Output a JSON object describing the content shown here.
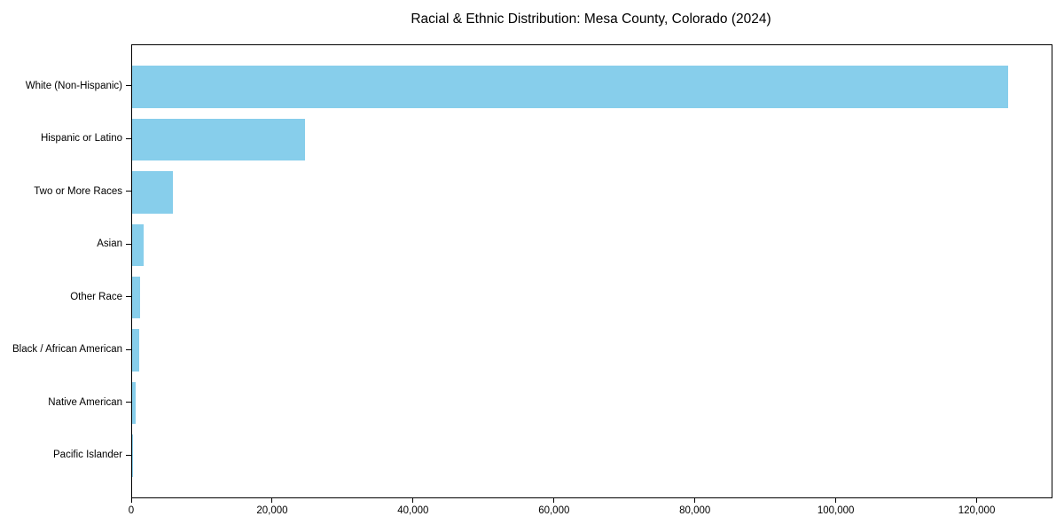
{
  "title": "Racial & Ethnic Distribution: Mesa County, Colorado (2024)",
  "chart_data": {
    "type": "bar",
    "orientation": "horizontal",
    "title": "Racial & Ethnic Distribution: Mesa County, Colorado (2024)",
    "xlabel": "",
    "ylabel": "",
    "categories": [
      "White (Non-Hispanic)",
      "Hispanic or Latino",
      "Two or More Races",
      "Asian",
      "Other Race",
      "Black / African American",
      "Native American",
      "Pacific Islander"
    ],
    "values": [
      124300,
      24600,
      5800,
      1650,
      1150,
      1000,
      500,
      100
    ],
    "xlim": [
      0,
      130500
    ],
    "x_ticks": [
      0,
      20000,
      40000,
      60000,
      80000,
      100000,
      120000
    ],
    "x_tick_labels": [
      "0",
      "20,000",
      "40,000",
      "60,000",
      "80,000",
      "100,000",
      "120,000"
    ],
    "bar_color": "#87ceeb",
    "grid": false,
    "legend": null
  }
}
